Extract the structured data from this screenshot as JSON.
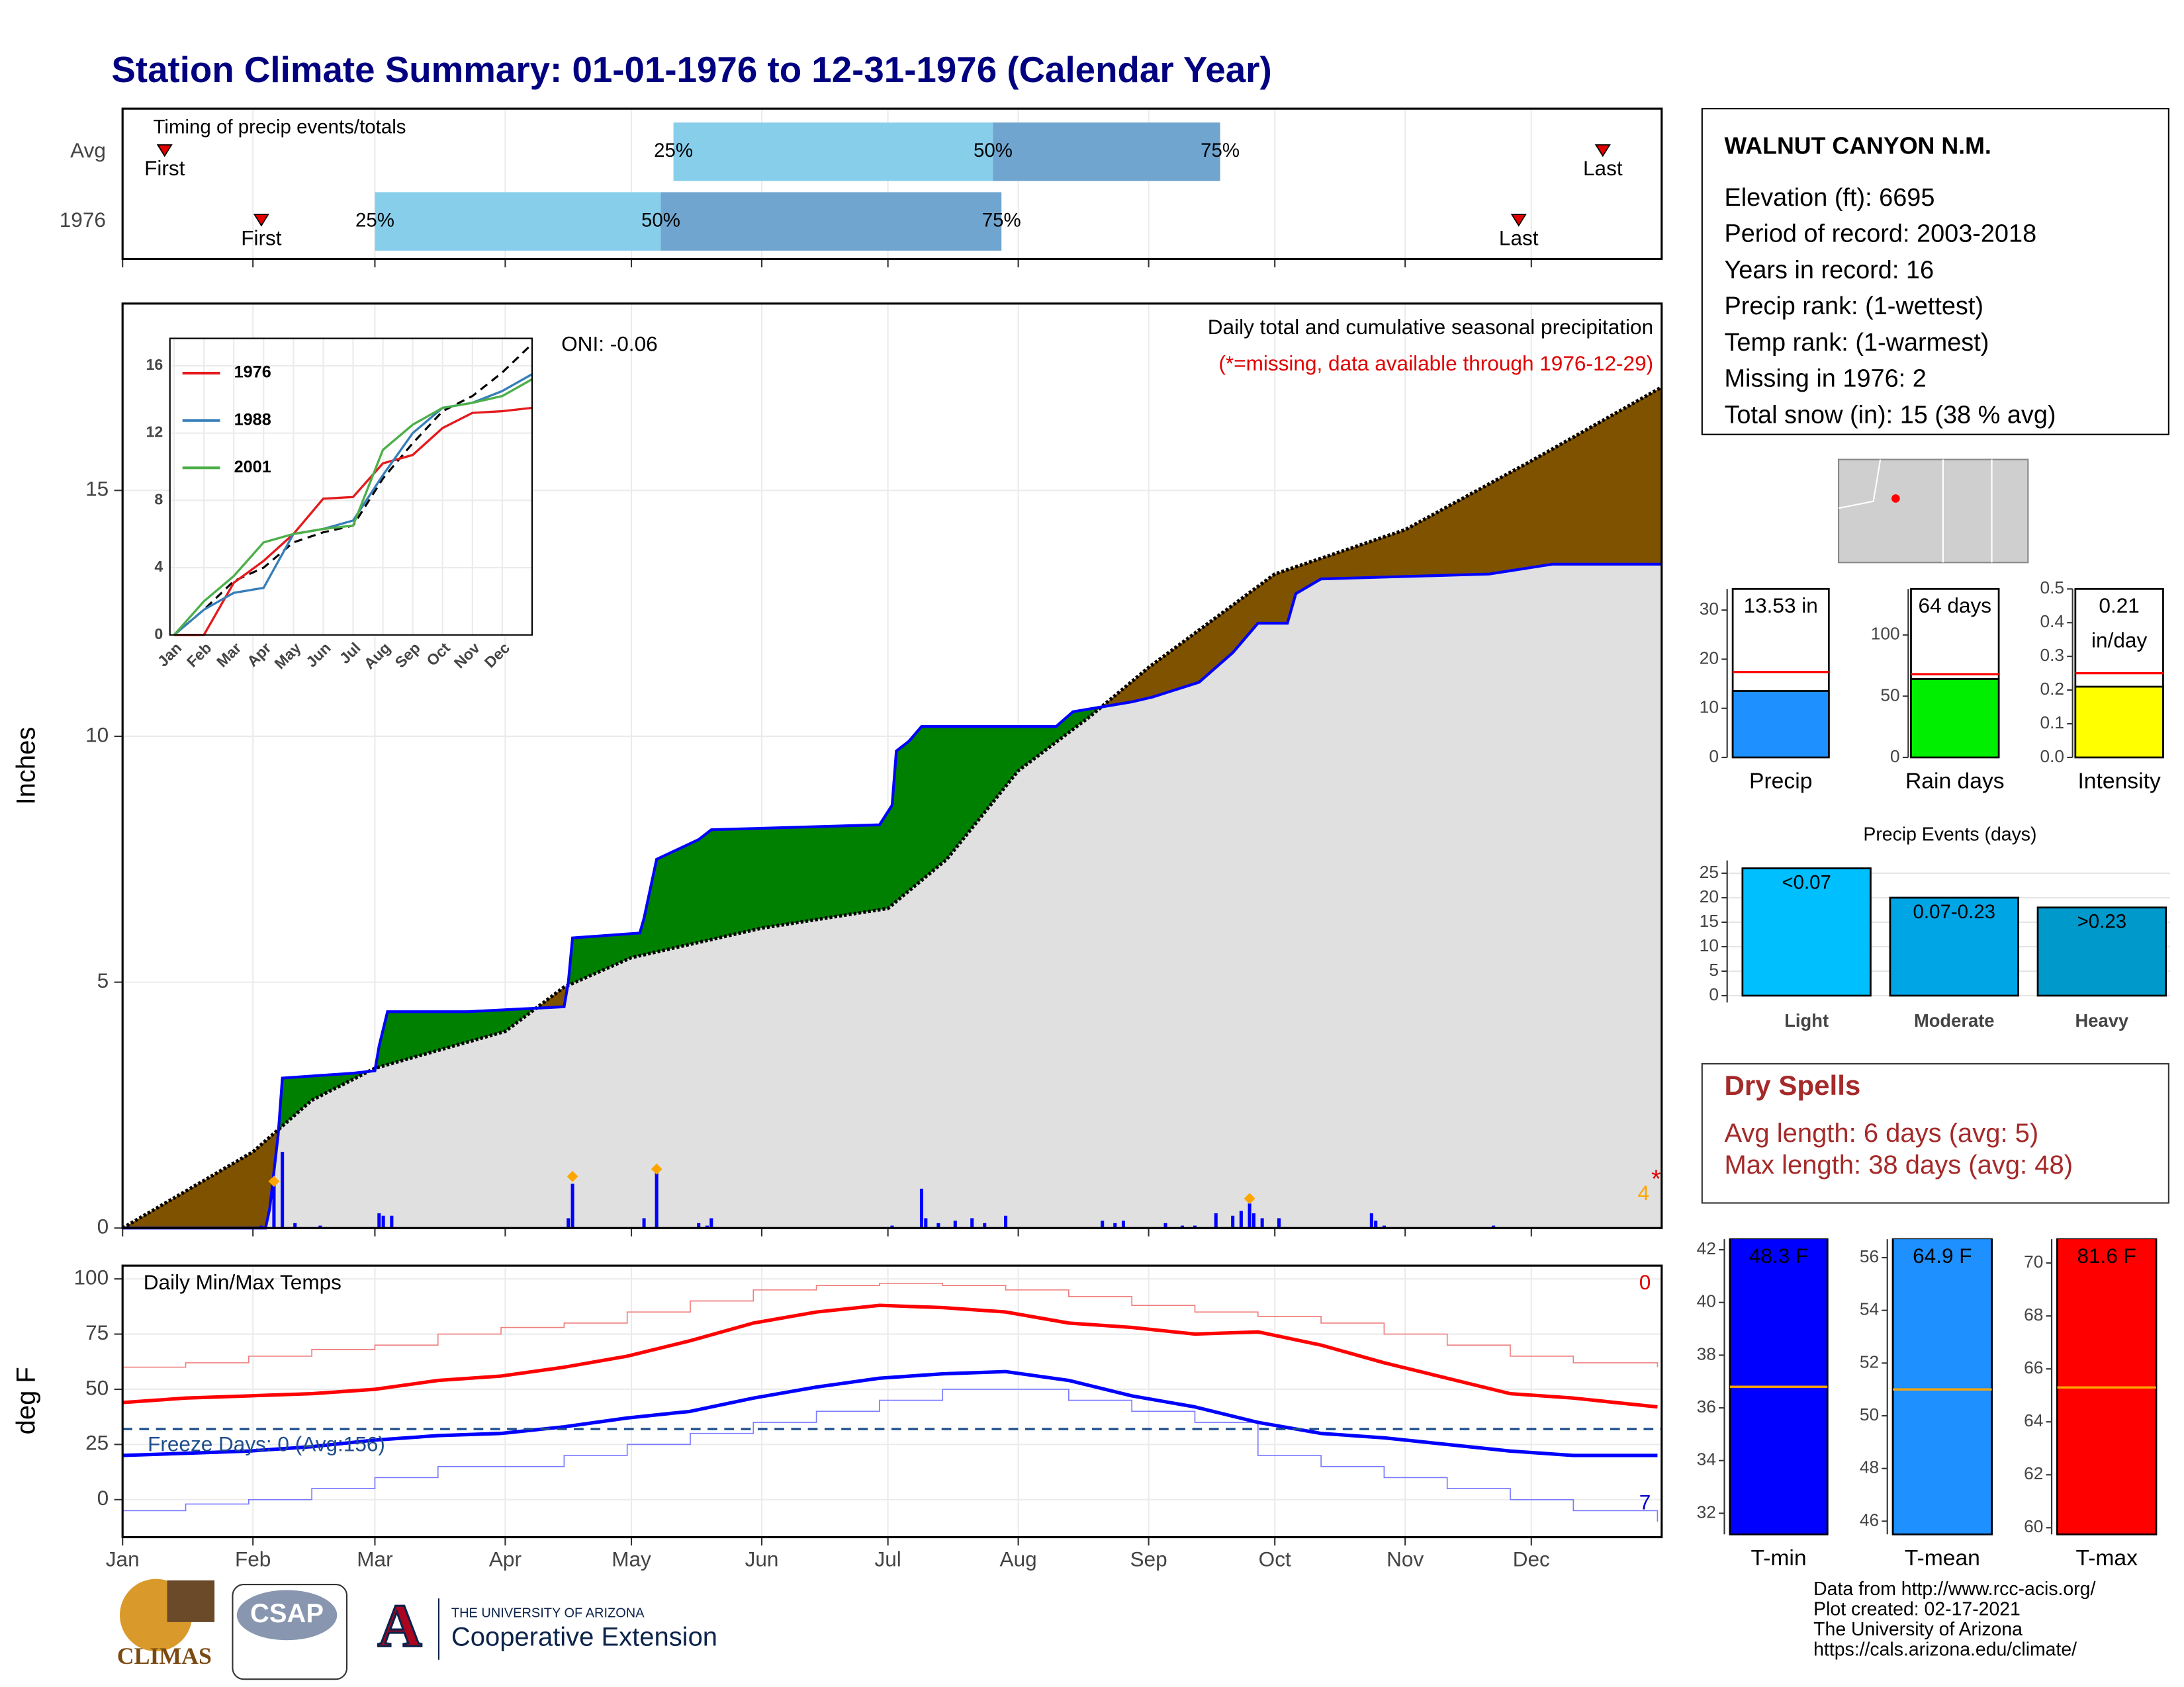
{
  "title": "Station Climate Summary: 01-01-1976 to 12-31-1976 (Calendar Year)",
  "timing": {
    "title": "Timing of precip events/totals",
    "xlim": [
      0,
      366
    ],
    "labels": {
      "first": "First",
      "last": "Last",
      "q25": "25%",
      "q50": "50%",
      "q75": "75%"
    },
    "rows": [
      {
        "label": "Avg",
        "first": 10,
        "q25": 131,
        "q50": 207,
        "q75": 261,
        "last": 352
      },
      {
        "label": "1976",
        "first": 33,
        "q25": 60,
        "q50": 128,
        "q75": 209,
        "last": 332
      }
    ],
    "colors": {
      "early": "#87ceeb",
      "late": "#6fa5cf",
      "marker": "#e00000"
    }
  },
  "station": {
    "name": "WALNUT CANYON N.M.",
    "lines": [
      "Elevation (ft): 6695",
      "Period of record: 2003-2018",
      "Years in record: 16",
      "Precip rank:  (1-wettest)",
      "Temp rank:  (1-warmest)",
      "Missing in 1976: 2",
      "Total snow (in): 15 (38 % avg)"
    ]
  },
  "dry_spells": {
    "title": "Dry Spells",
    "lines": [
      "Avg length: 6 days (avg: 5)",
      "Max length: 38 days (avg: 48)"
    ]
  },
  "credits": [
    "Data from http://www.rcc-acis.org/",
    "Plot created: 02-17-2021",
    "The University of Arizona",
    "https://cals.arizona.edu/climate/"
  ],
  "logos": {
    "climas": "CLIMAS",
    "csap": "CSAP",
    "ua_mark": "A",
    "ua_name": "THE UNIVERSITY OF ARIZONA",
    "ua_unit": "Cooperative Extension"
  },
  "chart_data": [
    {
      "type": "area",
      "ylabel": "Inches",
      "note": "Daily total and cumulative seasonal precipitation",
      "note2": "(*=missing, data available through 1976-12-29)",
      "oni": "ONI: -0.06",
      "corner_label": "4",
      "missing_marker": "*",
      "xlim": [
        0,
        366
      ],
      "xticks": [
        {
          "value": 0,
          "label": "Jan"
        },
        {
          "value": 31,
          "label": "Feb"
        },
        {
          "value": 60,
          "label": "Mar"
        },
        {
          "value": 91,
          "label": "Apr"
        },
        {
          "value": 121,
          "label": "May"
        },
        {
          "value": 152,
          "label": "Jun"
        },
        {
          "value": 182,
          "label": "Jul"
        },
        {
          "value": 213,
          "label": "Aug"
        },
        {
          "value": 244,
          "label": "Sep"
        },
        {
          "value": 274,
          "label": "Oct"
        },
        {
          "value": 305,
          "label": "Nov"
        },
        {
          "value": 335,
          "label": "Dec"
        }
      ],
      "ylim": [
        0,
        18.8
      ],
      "yticks": [
        0,
        5,
        10,
        15
      ],
      "series": [
        {
          "color": "#0000ff",
          "x": [
            0,
            34,
            35,
            37,
            38,
            55,
            60,
            61,
            63,
            82,
            105,
            106,
            107,
            123,
            124,
            127,
            137,
            140,
            180,
            183,
            184,
            187,
            190,
            214,
            222,
            226,
            240,
            245,
            256,
            264,
            270,
            277,
            279,
            285,
            325,
            340,
            366
          ],
          "values": [
            0,
            0,
            0.4,
            1.9,
            3.05,
            3.15,
            3.2,
            3.7,
            4.4,
            4.4,
            4.5,
            5.0,
            5.9,
            6.0,
            6.3,
            7.5,
            7.9,
            8.1,
            8.2,
            8.6,
            9.7,
            9.9,
            10.2,
            10.2,
            10.2,
            10.5,
            10.7,
            10.8,
            11.1,
            11.7,
            12.3,
            12.3,
            12.9,
            13.2,
            13.3,
            13.5,
            13.5
          ]
        },
        {
          "color": "#000000",
          "x": [
            0,
            20,
            31,
            45,
            60,
            91,
            105,
            121,
            152,
            182,
            196,
            213,
            230,
            244,
            274,
            305,
            335,
            366
          ],
          "values": [
            0,
            1.0,
            1.55,
            2.6,
            3.25,
            4.0,
            4.9,
            5.5,
            6.1,
            6.5,
            7.5,
            9.3,
            10.4,
            11.4,
            13.3,
            14.2,
            15.6,
            17.1
          ]
        }
      ],
      "fill_colors": {
        "above": "#008000",
        "below": "#7f5200",
        "base": "#e0e0e0"
      },
      "daily": {
        "color": "#0000ff",
        "x": [
          33,
          36,
          38,
          41,
          47,
          61,
          62,
          64,
          106,
          107,
          124,
          127,
          137,
          139,
          140,
          183,
          190,
          191,
          194,
          198,
          202,
          205,
          210,
          233,
          236,
          238,
          248,
          252,
          255,
          260,
          264,
          266,
          268,
          269,
          271,
          275,
          297,
          298,
          300,
          326
        ],
        "values": [
          0.05,
          0.9,
          1.55,
          0.1,
          0.05,
          0.3,
          0.25,
          0.25,
          0.2,
          0.9,
          0.2,
          1.2,
          0.1,
          0.05,
          0.2,
          0.05,
          0.8,
          0.2,
          0.1,
          0.15,
          0.2,
          0.1,
          0.25,
          0.15,
          0.1,
          0.15,
          0.1,
          0.05,
          0.05,
          0.3,
          0.25,
          0.35,
          0.5,
          0.3,
          0.2,
          0.2,
          0.3,
          0.15,
          0.05,
          0.05
        ]
      },
      "markers": {
        "color": "#ffa500",
        "x": [
          36,
          107,
          127,
          268
        ],
        "values": [
          0.95,
          1.05,
          1.2,
          0.6
        ]
      }
    },
    {
      "type": "line",
      "xlim": [
        0,
        12
      ],
      "xticks": [
        {
          "value": 0,
          "label": "Jan"
        },
        {
          "value": 1,
          "label": "Feb"
        },
        {
          "value": 2,
          "label": "Mar"
        },
        {
          "value": 3,
          "label": "Apr"
        },
        {
          "value": 4,
          "label": "May"
        },
        {
          "value": 5,
          "label": "Jun"
        },
        {
          "value": 6,
          "label": "Jul"
        },
        {
          "value": 7,
          "label": "Aug"
        },
        {
          "value": 8,
          "label": "Sep"
        },
        {
          "value": 9,
          "label": "Oct"
        },
        {
          "value": 10,
          "label": "Nov"
        },
        {
          "value": 11,
          "label": "Dec"
        }
      ],
      "ylim": [
        0,
        17.3
      ],
      "yticks": [
        0,
        4,
        8,
        12,
        16
      ],
      "x": [
        0,
        1,
        2,
        3,
        4,
        5,
        6,
        7,
        8,
        9,
        10,
        11,
        12
      ],
      "series": [
        {
          "name": "1976",
          "color": "#e41a1c",
          "values": [
            0,
            0,
            3.1,
            4.4,
            6.0,
            8.1,
            8.2,
            10.2,
            10.7,
            12.3,
            13.2,
            13.3,
            13.5
          ]
        },
        {
          "name": "1988",
          "color": "#377eb8",
          "values": [
            0,
            1.5,
            2.5,
            2.8,
            6.0,
            6.3,
            6.8,
            9.5,
            12.0,
            13.5,
            13.8,
            14.5,
            15.5
          ]
        },
        {
          "name": "2001",
          "color": "#4daf4a",
          "values": [
            0,
            2.0,
            3.5,
            5.5,
            6.0,
            6.3,
            6.5,
            11.0,
            12.5,
            13.5,
            13.8,
            14.2,
            15.2
          ]
        }
      ],
      "average": {
        "color": "#000000",
        "values": [
          0,
          1.5,
          3.2,
          4.0,
          5.5,
          6.1,
          6.5,
          9.3,
          11.4,
          13.3,
          14.2,
          15.6,
          17.3
        ]
      }
    },
    {
      "type": "line",
      "title": "Daily Min/Max Temps",
      "ylabel": "deg F",
      "xlim": [
        0,
        366
      ],
      "ylim": [
        -17,
        106
      ],
      "yticks": [
        0,
        25,
        50,
        75,
        100
      ],
      "freeze": 32,
      "freeze_label": "Freeze Days: 0 (Avg:156)",
      "count_high": "0",
      "count_low": "7",
      "x": [
        0,
        15,
        30,
        45,
        60,
        75,
        90,
        105,
        120,
        135,
        150,
        165,
        180,
        195,
        210,
        225,
        240,
        255,
        270,
        285,
        300,
        315,
        330,
        345,
        365
      ],
      "series": [
        {
          "color": "#ff0000",
          "width": 2.5,
          "values": [
            44,
            46,
            47,
            48,
            50,
            54,
            56,
            60,
            65,
            72,
            80,
            85,
            88,
            87,
            85,
            80,
            78,
            75,
            76,
            70,
            62,
            55,
            48,
            46,
            42
          ]
        },
        {
          "color": "#0000ff",
          "width": 2.5,
          "values": [
            20,
            21,
            22,
            24,
            27,
            29,
            30,
            33,
            37,
            40,
            46,
            51,
            55,
            57,
            58,
            54,
            47,
            42,
            35,
            30,
            28,
            25,
            22,
            20,
            20
          ]
        },
        {
          "color": "#f08080",
          "width": 0.8,
          "values": [
            60,
            62,
            65,
            68,
            70,
            75,
            78,
            80,
            85,
            90,
            95,
            97,
            98,
            97,
            95,
            92,
            88,
            85,
            83,
            80,
            75,
            70,
            65,
            62,
            60
          ]
        },
        {
          "color": "#7b7bff",
          "width": 0.8,
          "values": [
            -5,
            -2,
            0,
            5,
            10,
            15,
            15,
            20,
            25,
            30,
            35,
            40,
            45,
            50,
            50,
            45,
            40,
            35,
            20,
            15,
            10,
            5,
            0,
            -5,
            -10
          ]
        }
      ]
    },
    {
      "type": "bar",
      "categories": [
        "Precip"
      ],
      "values": [
        13.53
      ],
      "value_labels": [
        "13.53 in"
      ],
      "avg": 17.4,
      "color": "#1e90ff",
      "ylim": [
        0,
        34.3
      ],
      "yticks": [
        0,
        10,
        20,
        30
      ]
    },
    {
      "type": "bar",
      "categories": [
        "Rain days"
      ],
      "values": [
        64
      ],
      "value_labels": [
        "64 days"
      ],
      "avg": 68,
      "color": "#00ee00",
      "ylim": [
        0,
        137.5
      ],
      "yticks": [
        0,
        50,
        100
      ]
    },
    {
      "type": "bar",
      "categories": [
        "Intensity"
      ],
      "values": [
        0.21
      ],
      "value_labels": [
        "0.21"
      ],
      "unit_label": "in/day",
      "avg": 0.25,
      "color": "#ffff00",
      "ylim": [
        0,
        0.5
      ],
      "yticks": [
        {
          "value": 0,
          "label": "0.0"
        },
        0.1,
        0.2,
        0.3,
        0.4,
        0.5
      ]
    },
    {
      "type": "bar",
      "title": "Precip Events (days)",
      "categories": [
        "Light",
        "Moderate",
        "Heavy"
      ],
      "values": [
        26,
        20,
        18
      ],
      "ranges": [
        "<0.07",
        "0.07-0.23",
        ">0.23"
      ],
      "colors": [
        "#00bfff",
        "#00a5e6",
        "#0099cc"
      ],
      "ylim": [
        -1.4,
        27.6
      ],
      "yticks": [
        0,
        5,
        10,
        15,
        20,
        25
      ]
    },
    {
      "type": "bar",
      "categories": [
        "T-min"
      ],
      "values": [
        48.3
      ],
      "value_labels": [
        "48.3 F"
      ],
      "avg": 36.8,
      "color": "#0000ff",
      "ylim": [
        31.2,
        42.4
      ],
      "yticks": [
        32,
        34,
        36,
        38,
        40,
        42
      ]
    },
    {
      "type": "bar",
      "categories": [
        "T-mean"
      ],
      "values": [
        64.9
      ],
      "value_labels": [
        "64.9 F"
      ],
      "avg": 51.0,
      "color": "#1e90ff",
      "ylim": [
        45.5,
        56.7
      ],
      "yticks": [
        46,
        48,
        50,
        52,
        54,
        56
      ]
    },
    {
      "type": "bar",
      "categories": [
        "T-max"
      ],
      "values": [
        81.6
      ],
      "value_labels": [
        "81.6 F"
      ],
      "avg": 65.3,
      "color": "#ff0000",
      "ylim": [
        59.75,
        70.9
      ],
      "yticks": [
        60,
        62,
        64,
        66,
        68,
        70
      ]
    }
  ]
}
